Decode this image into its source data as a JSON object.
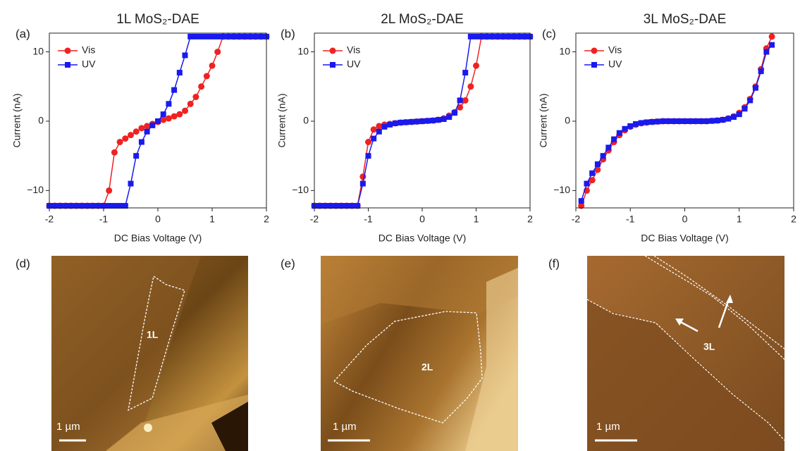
{
  "chart_data": [
    {
      "type": "line",
      "panel_label": "(a)",
      "title": "1L MoS₂-DAE",
      "x_label": "DC Bias Voltage (V)",
      "y_label": "Current (nA)",
      "x": [
        -2.0,
        -1.9,
        -1.8,
        -1.7,
        -1.6,
        -1.5,
        -1.4,
        -1.3,
        -1.2,
        -1.1,
        -1.0,
        -0.9,
        -0.8,
        -0.7,
        -0.6,
        -0.5,
        -0.4,
        -0.3,
        -0.2,
        -0.1,
        0.0,
        0.1,
        0.2,
        0.3,
        0.4,
        0.5,
        0.6,
        0.7,
        0.8,
        0.9,
        1.0,
        1.1,
        1.2,
        1.3,
        1.4,
        1.5,
        1.6,
        1.7,
        1.8,
        1.9,
        2.0
      ],
      "series": [
        {
          "name": "Vis",
          "color": "#ee2222",
          "marker": "circle",
          "values": [
            -12.2,
            -12.2,
            -12.2,
            -12.2,
            -12.2,
            -12.2,
            -12.2,
            -12.2,
            -12.2,
            -12.2,
            -12.2,
            -10,
            -4.5,
            -3,
            -2.5,
            -2,
            -1.5,
            -1,
            -0.7,
            -0.4,
            -0.1,
            0.2,
            0.4,
            0.7,
            1,
            1.5,
            2.5,
            3.5,
            5,
            6.5,
            8,
            10,
            12.2,
            12.2,
            12.2,
            12.2,
            12.2,
            12.2,
            12.2,
            12.2,
            12.2
          ]
        },
        {
          "name": "UV",
          "color": "#1a1aee",
          "marker": "square",
          "values": [
            -12.2,
            -12.2,
            -12.2,
            -12.2,
            -12.2,
            -12.2,
            -12.2,
            -12.2,
            -12.2,
            -12.2,
            -12.2,
            -12.2,
            -12.2,
            -12.2,
            -12.2,
            -9,
            -5,
            -3,
            -1.5,
            -0.6,
            0,
            1,
            2.5,
            4.5,
            7,
            9.5,
            12.2,
            12.2,
            12.2,
            12.2,
            12.2,
            12.2,
            12.2,
            12.2,
            12.2,
            12.2,
            12.2,
            12.2,
            12.2,
            12.2,
            12.2
          ]
        }
      ],
      "xlim": [
        -2,
        2
      ],
      "xticks": [
        -2,
        -1,
        0,
        1,
        2
      ],
      "ylim": [
        -12.5,
        12.7
      ],
      "yticks": [
        {
          "value": -10,
          "label": "−10"
        },
        0,
        10
      ],
      "legend": "upper left"
    },
    {
      "type": "line",
      "panel_label": "(b)",
      "title": "2L MoS₂-DAE",
      "x_label": "DC Bias Voltage (V)",
      "y_label": "Current (nA)",
      "x": [
        -2.0,
        -1.9,
        -1.8,
        -1.7,
        -1.6,
        -1.5,
        -1.4,
        -1.3,
        -1.2,
        -1.1,
        -1.0,
        -0.9,
        -0.8,
        -0.7,
        -0.6,
        -0.5,
        -0.4,
        -0.3,
        -0.2,
        -0.1,
        0.0,
        0.1,
        0.2,
        0.3,
        0.4,
        0.5,
        0.6,
        0.7,
        0.8,
        0.9,
        1.0,
        1.1,
        1.2,
        1.3,
        1.4,
        1.5,
        1.6,
        1.7,
        1.8,
        1.9,
        2.0
      ],
      "series": [
        {
          "name": "Vis",
          "color": "#ee2222",
          "marker": "circle",
          "values": [
            -12.2,
            -12.2,
            -12.2,
            -12.2,
            -12.2,
            -12.2,
            -12.2,
            -12.2,
            -12.2,
            -8,
            -3,
            -1.2,
            -0.7,
            -0.5,
            -0.4,
            -0.3,
            -0.2,
            -0.15,
            -0.1,
            -0.05,
            0,
            0.05,
            0.1,
            0.2,
            0.4,
            0.8,
            1.3,
            2,
            3,
            5,
            8,
            12.2,
            12.2,
            12.2,
            12.2,
            12.2,
            12.2,
            12.2,
            12.2,
            12.2,
            12.2
          ]
        },
        {
          "name": "UV",
          "color": "#1a1aee",
          "marker": "square",
          "values": [
            -12.2,
            -12.2,
            -12.2,
            -12.2,
            -12.2,
            -12.2,
            -12.2,
            -12.2,
            -12.2,
            -9,
            -5,
            -2.5,
            -1.5,
            -0.8,
            -0.5,
            -0.3,
            -0.2,
            -0.15,
            -0.1,
            -0.05,
            0,
            0.05,
            0.1,
            0.2,
            0.3,
            0.6,
            1.2,
            3,
            7,
            12.2,
            12.2,
            12.2,
            12.2,
            12.2,
            12.2,
            12.2,
            12.2,
            12.2,
            12.2,
            12.2,
            12.2
          ]
        }
      ],
      "xlim": [
        -2,
        2
      ],
      "xticks": [
        -2,
        -1,
        0,
        1,
        2
      ],
      "ylim": [
        -12.5,
        12.7
      ],
      "yticks": [
        {
          "value": -10,
          "label": "−10"
        },
        0,
        10
      ],
      "legend": "upper left"
    },
    {
      "type": "line",
      "panel_label": "(c)",
      "title": "3L MoS₂-DAE",
      "x_label": "DC Bias Voltage (V)",
      "y_label": "Current (nA)",
      "x": [
        -2.0,
        -1.9,
        -1.8,
        -1.7,
        -1.6,
        -1.5,
        -1.4,
        -1.3,
        -1.2,
        -1.1,
        -1.0,
        -0.9,
        -0.8,
        -0.7,
        -0.6,
        -0.5,
        -0.4,
        -0.3,
        -0.2,
        -0.1,
        0.0,
        0.1,
        0.2,
        0.3,
        0.4,
        0.5,
        0.6,
        0.7,
        0.8,
        0.9,
        1.0,
        1.1,
        1.2,
        1.3,
        1.4,
        1.5,
        1.6,
        1.7,
        1.8,
        1.9,
        2.0
      ],
      "series": [
        {
          "name": "Vis",
          "color": "#ee2222",
          "marker": "circle",
          "values": [
            null,
            -12.2,
            -10,
            -8.5,
            -7,
            -5.5,
            -4.2,
            -3,
            -2,
            -1.3,
            -0.8,
            -0.5,
            -0.3,
            -0.2,
            -0.1,
            -0.05,
            0,
            0,
            0,
            0,
            0,
            0,
            0,
            0,
            0,
            0.05,
            0.1,
            0.2,
            0.4,
            0.7,
            1.2,
            2,
            3.2,
            5,
            7.5,
            10.5,
            12.2,
            null,
            null,
            null,
            null
          ]
        },
        {
          "name": "UV",
          "color": "#1a1aee",
          "marker": "square",
          "values": [
            null,
            -11.5,
            -9,
            -7.5,
            -6.2,
            -5,
            -3.8,
            -2.6,
            -1.7,
            -1.1,
            -0.7,
            -0.4,
            -0.25,
            -0.15,
            -0.1,
            -0.05,
            0,
            0,
            0,
            0,
            0,
            0,
            0,
            0,
            0,
            0.05,
            0.1,
            0.2,
            0.35,
            0.6,
            1,
            1.8,
            3,
            4.8,
            7.2,
            10,
            11,
            null,
            null,
            null,
            null
          ]
        }
      ],
      "xlim": [
        -2,
        2
      ],
      "xticks": [
        -2,
        -1,
        0,
        1,
        2
      ],
      "ylim": [
        -12.5,
        12.7
      ],
      "yticks": [
        {
          "value": -10,
          "label": "−10"
        },
        0,
        10
      ],
      "legend": "upper left"
    }
  ],
  "images": [
    {
      "panel_label": "(d)",
      "region_label": "1L",
      "scale_label": "1 µm"
    },
    {
      "panel_label": "(e)",
      "region_label": "2L",
      "scale_label": "1 µm"
    },
    {
      "panel_label": "(f)",
      "region_label": "3L",
      "scale_label": "1 µm"
    }
  ]
}
